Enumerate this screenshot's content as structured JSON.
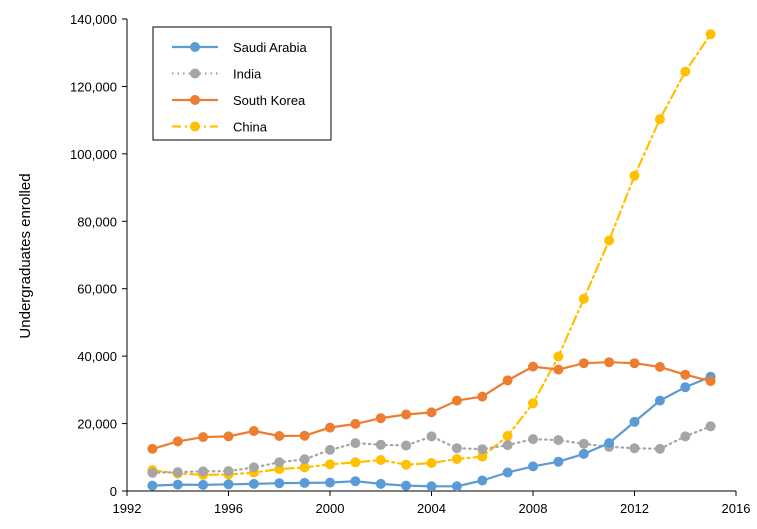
{
  "chart_data": {
    "type": "line",
    "title": "",
    "xlabel": "",
    "ylabel": "Undergraduates enrolled",
    "xlim": [
      1992,
      2016
    ],
    "ylim": [
      0,
      140000
    ],
    "x_ticks": [
      1992,
      1996,
      2000,
      2004,
      2008,
      2012,
      2016
    ],
    "y_ticks": [
      0,
      20000,
      40000,
      60000,
      80000,
      100000,
      120000,
      140000
    ],
    "y_tick_labels": [
      "0",
      "20,000",
      "40,000",
      "60,000",
      "80,000",
      "100,000",
      "120,000",
      "140,000"
    ],
    "grid": false,
    "legend_position": "top-left",
    "x": [
      1993,
      1994,
      1995,
      1996,
      1997,
      1998,
      1999,
      2000,
      2001,
      2002,
      2003,
      2004,
      2005,
      2006,
      2007,
      2008,
      2009,
      2010,
      2011,
      2012,
      2013,
      2014,
      2015
    ],
    "series": [
      {
        "name": "Saudi Arabia",
        "color": "#5b9bd5",
        "line_style": "solid",
        "values": [
          1600,
          1900,
          1800,
          2000,
          2100,
          2300,
          2400,
          2500,
          2900,
          2100,
          1600,
          1400,
          1400,
          3100,
          5500,
          7300,
          8700,
          11000,
          14200,
          20500,
          26800,
          30800,
          33900
        ]
      },
      {
        "name": "India",
        "color": "#a5a5a5",
        "line_style": "dotted",
        "values": [
          5400,
          5600,
          5800,
          5900,
          7000,
          8500,
          9400,
          12200,
          14200,
          13700,
          13500,
          16200,
          12700,
          12400,
          13600,
          15400,
          15100,
          14000,
          13100,
          12700,
          12500,
          16200,
          19200
        ]
      },
      {
        "name": "South Korea",
        "color": "#ed7d31",
        "line_style": "solid",
        "values": [
          12500,
          14700,
          16000,
          16200,
          17800,
          16300,
          16400,
          18800,
          19900,
          21600,
          22700,
          23300,
          26800,
          28000,
          32800,
          36900,
          36000,
          37900,
          38200,
          37900,
          36800,
          34500,
          32600
        ]
      },
      {
        "name": "China",
        "color": "#ffc000",
        "line_style": "dashdot",
        "values": [
          6200,
          5200,
          4800,
          4900,
          5500,
          6500,
          7000,
          7900,
          8500,
          9200,
          7800,
          8300,
          9500,
          10200,
          16300,
          26000,
          39900,
          57000,
          74300,
          93500,
          110300,
          124400,
          135500
        ]
      }
    ]
  }
}
